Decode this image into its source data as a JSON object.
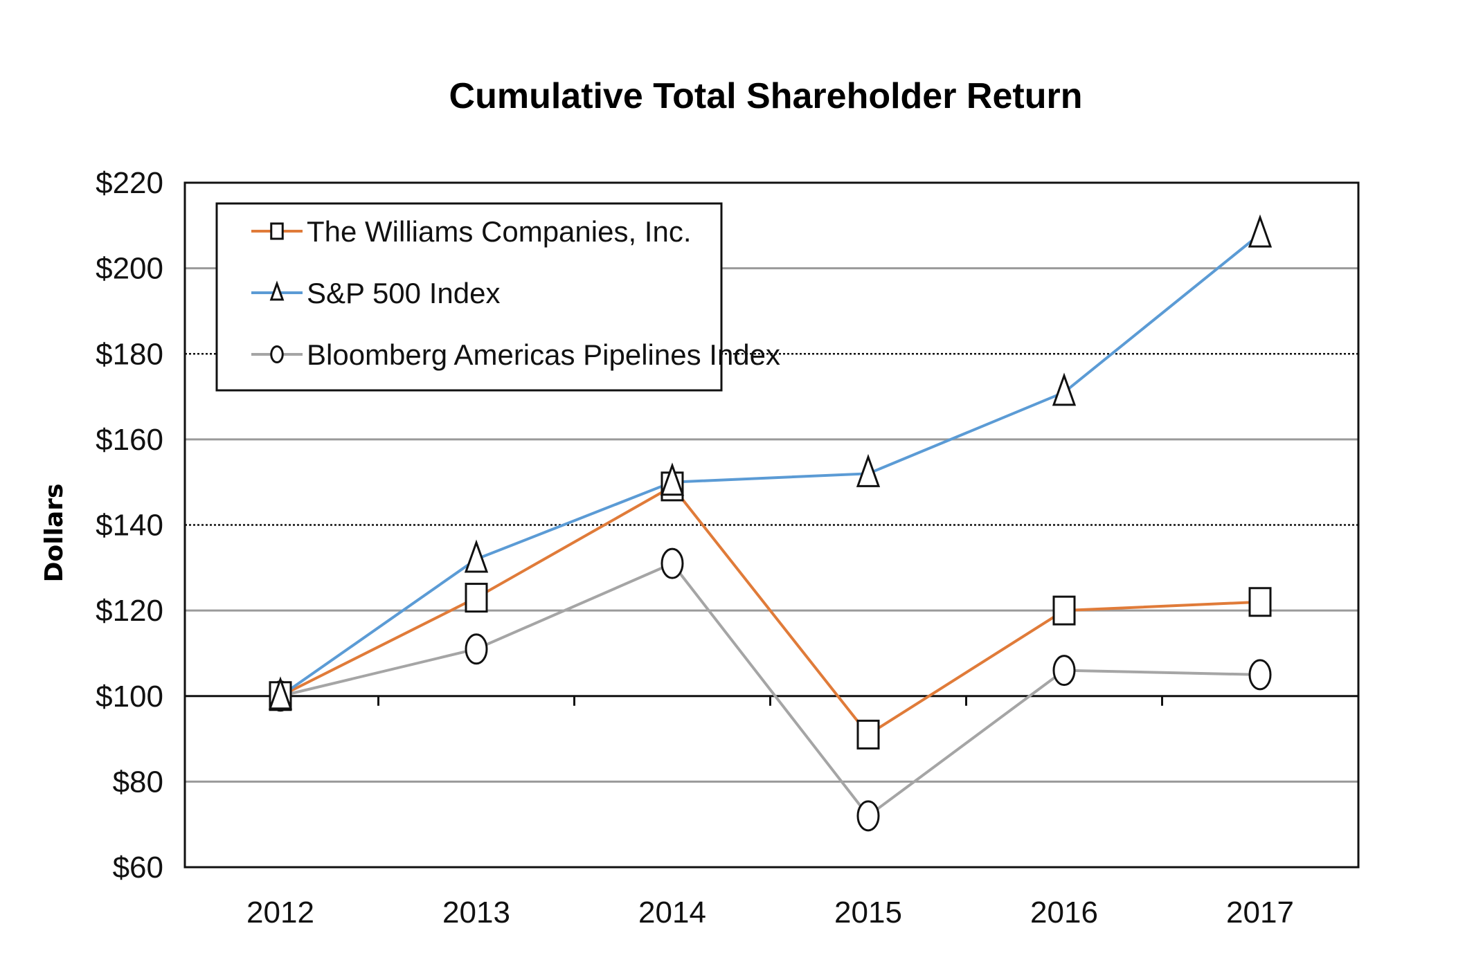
{
  "chart_data": {
    "type": "line",
    "title": "Cumulative  Total Shareholder Return",
    "xlabel": "",
    "ylabel": "Dollars",
    "categories": [
      "2012",
      "2013",
      "2014",
      "2015",
      "2016",
      "2017"
    ],
    "ylim": [
      60,
      220
    ],
    "yticks": [
      "$60",
      "$80",
      "$100",
      "$120",
      "$140",
      "$160",
      "$180",
      "$200",
      "$220"
    ],
    "ytick_values": [
      60,
      80,
      100,
      120,
      140,
      160,
      180,
      200,
      220
    ],
    "grid": true,
    "legend_position": "top-left",
    "series": [
      {
        "name": "The Williams Companies, Inc.",
        "color": "#e07b39",
        "marker": "square",
        "values": [
          100,
          123,
          149,
          91,
          120,
          122
        ]
      },
      {
        "name": "S&P 500 Index",
        "color": "#5b9bd5",
        "marker": "triangle",
        "values": [
          100,
          132,
          150,
          152,
          171,
          208
        ]
      },
      {
        "name": "Bloomberg Americas Pipelines Index",
        "color": "#a5a5a5",
        "marker": "circle",
        "values": [
          100,
          111,
          131,
          72,
          106,
          105
        ]
      }
    ]
  }
}
